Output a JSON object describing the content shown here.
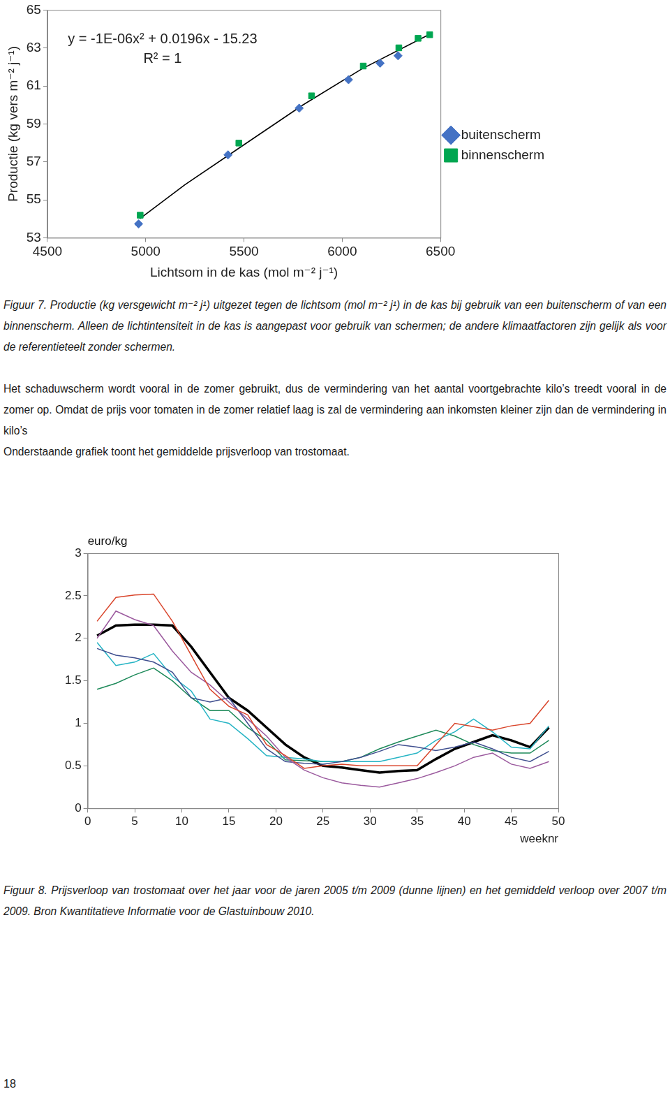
{
  "chart_data": [
    {
      "type": "scatter",
      "xlabel": "Lichtsom in de kas (mol m⁻² j⁻¹)",
      "ylabel": "Productie (kg vers m⁻² j⁻¹)",
      "annotations": [
        "y = -1E-06x² + 0.0196x - 15.23",
        "R² = 1"
      ],
      "xlim": [
        4500,
        6500
      ],
      "xticks": [
        4500,
        5000,
        5500,
        6000,
        6500
      ],
      "ylim": [
        53,
        65
      ],
      "yticks": [
        53,
        55,
        57,
        59,
        61,
        63,
        65
      ],
      "grid": false,
      "legend": "right",
      "series": [
        {
          "name": "buitenscherm",
          "color": "#4472c4",
          "marker": "diamond",
          "x": [
            4964,
            5419,
            5781,
            6032,
            6193,
            6284
          ],
          "values": [
            53.73,
            57.37,
            59.83,
            61.33,
            62.2,
            62.59
          ]
        },
        {
          "name": "binnenscherm",
          "color": "#00a651",
          "marker": "square",
          "x": [
            4972,
            5474,
            5844,
            6107,
            6288,
            6386,
            6445
          ],
          "values": [
            54.19,
            57.99,
            60.48,
            62.05,
            63.01,
            63.51,
            63.7
          ]
        },
        {
          "type": "line",
          "color": "#000000",
          "line_style": "solid",
          "x": [
            4970,
            5200,
            5500,
            5800,
            6100,
            6440
          ],
          "values": [
            54.0,
            55.8,
            57.9,
            60.0,
            61.9,
            63.7
          ]
        }
      ]
    },
    {
      "type": "line",
      "xlabel": "weeknr",
      "ylabel": "euro/kg",
      "xlim": [
        0,
        50
      ],
      "xticks": [
        0,
        5,
        10,
        15,
        20,
        25,
        30,
        35,
        40,
        45,
        50
      ],
      "ylim": [
        0,
        3
      ],
      "yticks": [
        0,
        0.5,
        1,
        1.5,
        2,
        2.5,
        3
      ],
      "grid": false,
      "x": [
        1,
        3,
        5,
        7,
        9,
        11,
        13,
        15,
        17,
        19,
        21,
        23,
        25,
        27,
        29,
        31,
        33,
        35,
        37,
        39,
        41,
        43,
        45,
        47,
        49
      ],
      "series": [
        {
          "color": "#d9452b",
          "line_style": "solid",
          "values": [
            2.2,
            2.48,
            2.51,
            2.52,
            2.2,
            1.8,
            1.4,
            1.2,
            1.1,
            0.75,
            0.62,
            0.47,
            0.5,
            0.52,
            0.5,
            0.5,
            0.5,
            0.5,
            0.75,
            1.0,
            0.96,
            0.92,
            0.97,
            1.0,
            1.27
          ]
        },
        {
          "color": "#9b5a9e",
          "line_style": "solid",
          "values": [
            2.0,
            2.32,
            2.22,
            2.15,
            1.85,
            1.6,
            1.45,
            1.25,
            1.05,
            0.85,
            0.6,
            0.45,
            0.36,
            0.3,
            0.27,
            0.25,
            0.3,
            0.35,
            0.42,
            0.5,
            0.6,
            0.65,
            0.52,
            0.47,
            0.55
          ]
        },
        {
          "color": "#3f4f8f",
          "line_style": "solid",
          "values": [
            1.88,
            1.8,
            1.77,
            1.72,
            1.6,
            1.3,
            1.25,
            1.3,
            1.0,
            0.7,
            0.55,
            0.53,
            0.52,
            0.55,
            0.6,
            0.67,
            0.75,
            0.72,
            0.68,
            0.72,
            0.78,
            0.7,
            0.6,
            0.55,
            0.67
          ]
        },
        {
          "color": "#25b4c4",
          "line_style": "solid",
          "values": [
            1.95,
            1.68,
            1.72,
            1.82,
            1.55,
            1.38,
            1.05,
            1.0,
            0.82,
            0.62,
            0.6,
            0.58,
            0.55,
            0.55,
            0.55,
            0.55,
            0.6,
            0.65,
            0.8,
            0.9,
            1.05,
            0.9,
            0.72,
            0.7,
            0.97
          ]
        },
        {
          "color": "#1e8a5a",
          "line_style": "solid",
          "values": [
            1.4,
            1.47,
            1.57,
            1.65,
            1.5,
            1.3,
            1.15,
            1.15,
            0.95,
            0.8,
            0.57,
            0.56,
            0.55,
            0.55,
            0.6,
            0.7,
            0.78,
            0.85,
            0.92,
            0.85,
            0.75,
            0.68,
            0.65,
            0.65,
            0.8
          ]
        },
        {
          "color": "#000000",
          "line_style": "thick",
          "values": [
            2.03,
            2.15,
            2.16,
            2.16,
            2.15,
            1.9,
            1.6,
            1.3,
            1.15,
            0.95,
            0.75,
            0.6,
            0.5,
            0.48,
            0.45,
            0.42,
            0.44,
            0.45,
            0.58,
            0.7,
            0.78,
            0.86,
            0.8,
            0.72,
            0.95
          ]
        }
      ]
    }
  ],
  "document": {
    "figure7_caption": "Figuur 7. Productie (kg versgewicht m⁻² j¹) uitgezet tegen de lichtsom (mol m⁻² j¹) in de kas bij gebruik van een buitenscherm of van een binnenscherm. Alleen de lichtintensiteit in de kas is aangepast voor gebruik van schermen; de andere klimaatfactoren zijn gelijk als voor de referentieteelt zonder schermen.",
    "paragraphs": [
      "Het schaduwscherm wordt vooral in de zomer gebruikt, dus de vermindering van het aantal voortgebrachte kilo’s treedt vooral in de zomer op. Omdat de prijs voor tomaten in de zomer relatief laag is zal de vermindering aan inkomsten kleiner zijn dan de vermindering in kilo’s",
      "Onderstaande grafiek toont het gemiddelde prijsverloop van trostomaat."
    ],
    "figure8_caption": "Figuur 8. Prijsverloop van trostomaat over het jaar voor de jaren 2005 t/m 2009 (dunne lijnen) en het gemiddeld verloop over 2007 t/m 2009. Bron Kwantitatieve Informatie voor de Glastuinbouw 2010.",
    "page_number": "18"
  }
}
